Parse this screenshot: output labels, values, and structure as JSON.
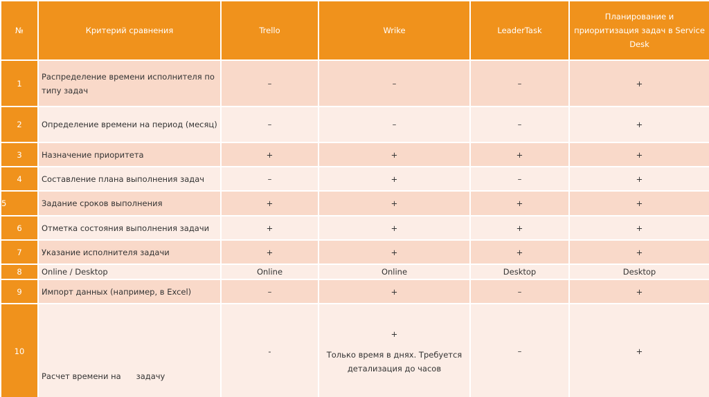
{
  "table": {
    "header": [
      "№",
      "Критерий сравнения",
      "Trello",
      "Wrike",
      "LeaderTask",
      "Планирование и приоритизация задач в Service Desk"
    ],
    "rows": [
      [
        "1",
        "Распределение времени исполнителя по типу задач",
        "–",
        "–",
        "–",
        "+"
      ],
      [
        "2",
        "Определение времени на период (месяц)",
        "–",
        "–",
        "–",
        "+"
      ],
      [
        "3",
        "Назначение приоритета",
        "+",
        "+",
        "+",
        "+"
      ],
      [
        "4",
        "Составление плана выполнения задач",
        "–",
        "+",
        "–",
        "+"
      ],
      [
        "5",
        "Задание сроков выполнения",
        "+",
        "+",
        "+",
        "+"
      ],
      [
        "6",
        "Отметка состояния выполнения задачи",
        "+",
        "+",
        "+",
        "+"
      ],
      [
        "7",
        "Указание исполнителя задачи",
        "+",
        "+",
        "+",
        "+"
      ],
      [
        "8",
        "Online / Desktop",
        "Online",
        "Online",
        "Desktop",
        "Desktop"
      ],
      [
        "9",
        "Импорт данных (например, в Excel)",
        "–",
        "+",
        "–",
        "+"
      ],
      [
        "10",
        "Расчет времени на      задачу",
        "-",
        [
          "+",
          "Только время в днях. Требуется детализация до часов"
        ],
        "–",
        "+"
      ]
    ]
  }
}
